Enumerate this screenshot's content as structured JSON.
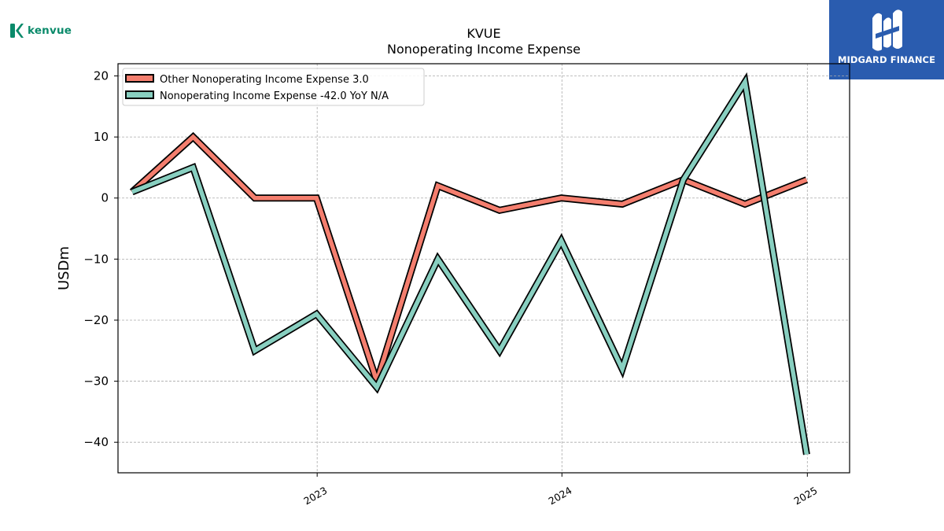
{
  "logos": {
    "company": "kenvue",
    "brand": "MIDGARD FINANCE"
  },
  "colors": {
    "other_series": "#f47e6e",
    "main_series": "#88cfc0",
    "outline": "#000000",
    "brand_bg": "#2a5caf",
    "logo_green": "#0a8a6a"
  },
  "chart_data": {
    "type": "line",
    "title": "KVUE",
    "subtitle": "Nonoperating Income Expense",
    "ylabel": "USDm",
    "xlabel": "",
    "ylim": [
      -45,
      22
    ],
    "xlim": [
      "2022-03-10",
      "2025-03-05"
    ],
    "x": [
      "2022-03-31",
      "2022-06-30",
      "2022-09-30",
      "2022-12-31",
      "2023-03-31",
      "2023-06-30",
      "2023-09-30",
      "2023-12-31",
      "2024-03-31",
      "2024-06-30",
      "2024-09-30",
      "2024-12-31"
    ],
    "x_ticks": [
      "2023",
      "2024",
      "2025"
    ],
    "x_tick_dates": [
      "2023-01-01",
      "2024-01-01",
      "2025-01-01"
    ],
    "y_ticks": [
      20,
      10,
      0,
      -10,
      -20,
      -30,
      -40
    ],
    "y_tick_labels": [
      "20",
      "10",
      "0",
      "−10",
      "−20",
      "−30",
      "−40"
    ],
    "grid": true,
    "legend_position": "upper-left",
    "series": [
      {
        "name": "Other Nonoperating Income Expense  3.0",
        "color": "#f47e6e",
        "values": [
          1.0,
          10.0,
          0.0,
          0.0,
          -30.0,
          2.0,
          -2.0,
          0.0,
          -1.0,
          3.0,
          -1.0,
          3.0
        ]
      },
      {
        "name": "Nonoperating Income Expense  -42.0 YoY N/A",
        "color": "#88cfc0",
        "values": [
          1.0,
          5.0,
          -25.0,
          -19.0,
          -31.0,
          -10.0,
          -25.0,
          -7.0,
          -28.0,
          3.0,
          19.0,
          -42.0
        ]
      }
    ]
  }
}
